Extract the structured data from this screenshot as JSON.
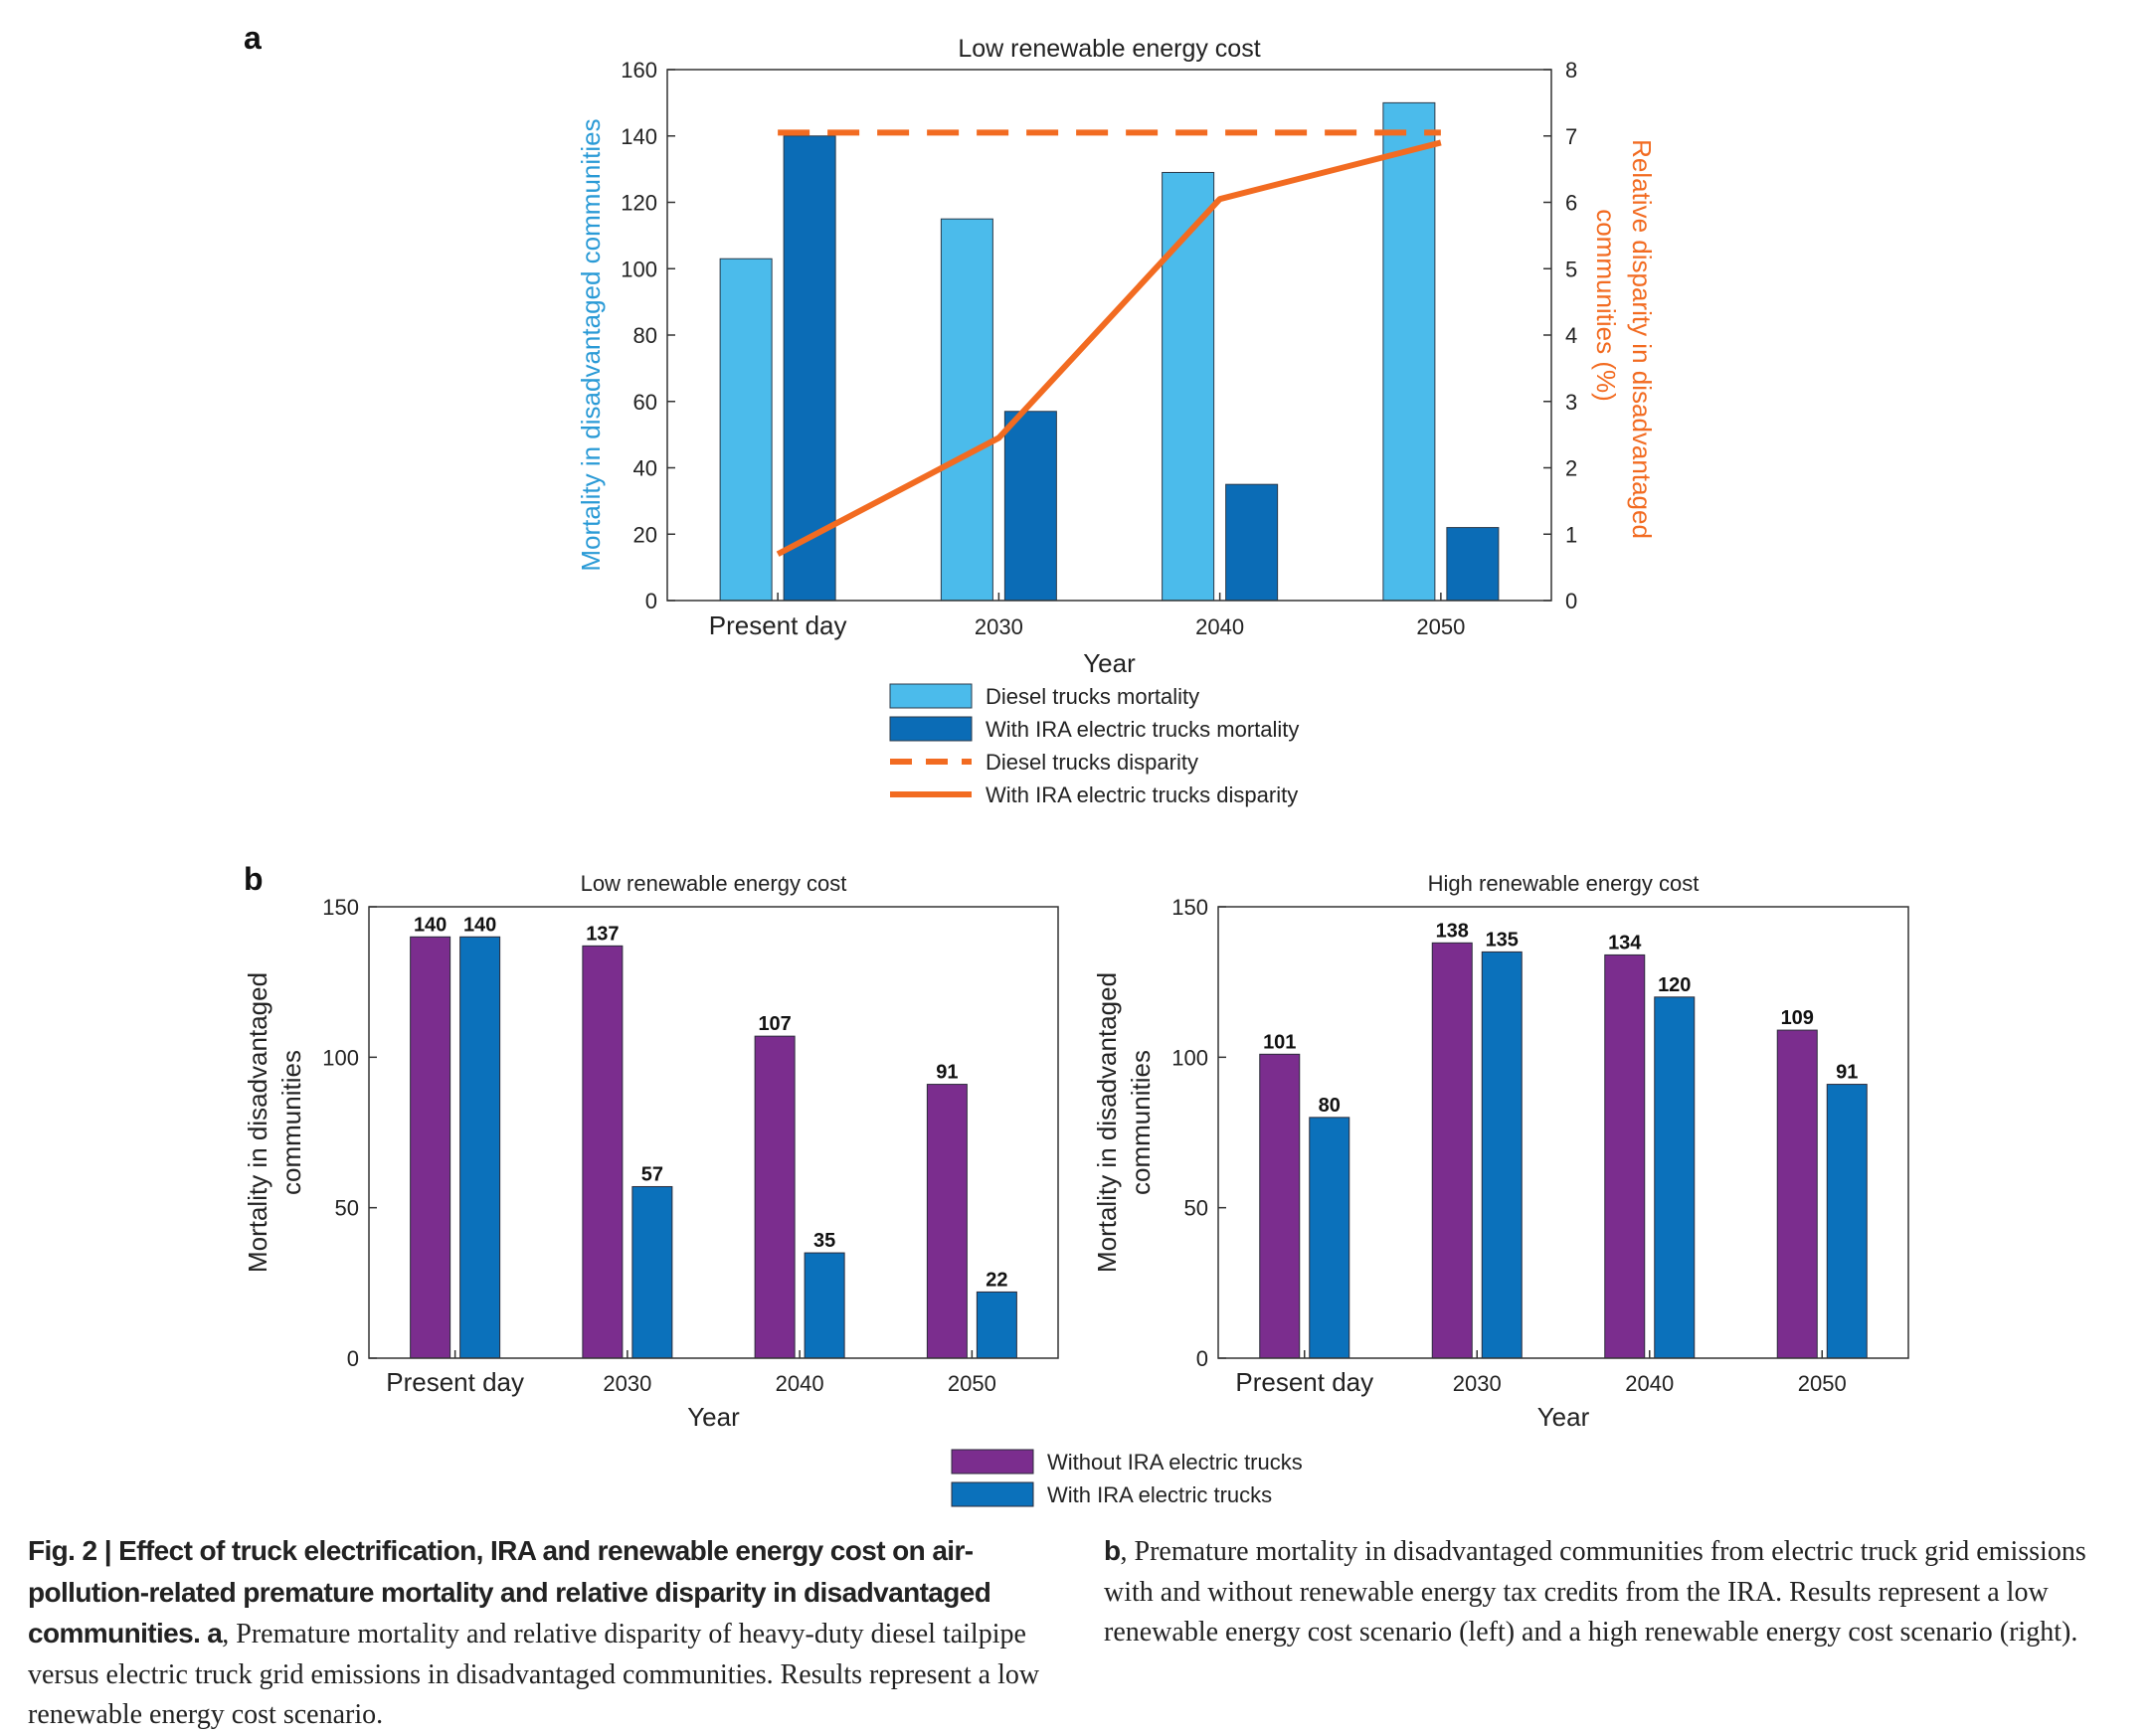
{
  "panel_labels": {
    "a": "a",
    "b": "b"
  },
  "colors": {
    "diesel_light_blue": "#4bbbeb",
    "ira_dark_blue": "#0b6cb6",
    "disparity_orange": "#f26b21",
    "without_ira_purple": "#7b2d8e",
    "with_ira_blue": "#0b71bb",
    "left_axis_blue": "#2a9ad6"
  },
  "chart_data": [
    {
      "id": "a",
      "type": "bar",
      "title": "Low renewable energy cost",
      "xlabel": "Year",
      "ylabel": "Mortality in disadvantaged communities",
      "y2label_line1": "Relative disparity in disadvantaged",
      "y2label_line2": "communities (%)",
      "categories": [
        "Present day",
        "2030",
        "2040",
        "2050"
      ],
      "ylim": [
        0,
        160
      ],
      "yticks": [
        0,
        20,
        40,
        60,
        80,
        100,
        120,
        140,
        160
      ],
      "y2lim": [
        0,
        8
      ],
      "y2ticks": [
        0,
        1,
        2,
        3,
        4,
        5,
        6,
        7,
        8
      ],
      "series": [
        {
          "name": "Diesel trucks mortality",
          "kind": "bar",
          "values": [
            103,
            115,
            129,
            150
          ]
        },
        {
          "name": "With IRA electric trucks mortality",
          "kind": "bar",
          "values": [
            140,
            57,
            35,
            22
          ]
        },
        {
          "name": "Diesel trucks disparity",
          "kind": "line-dashed",
          "axis": "right",
          "values": [
            7.05,
            7.05,
            7.05,
            7.05
          ]
        },
        {
          "name": "With IRA electric trucks disparity",
          "kind": "line",
          "axis": "right",
          "values": [
            0.7,
            2.45,
            6.05,
            6.9
          ]
        }
      ],
      "grid": false,
      "legend_position": "bottom"
    },
    {
      "id": "b-left",
      "type": "bar",
      "title": "Low renewable energy cost",
      "xlabel": "Year",
      "ylabel_line1": "Mortality in disadvantaged",
      "ylabel_line2": "communities",
      "categories": [
        "Present day",
        "2030",
        "2040",
        "2050"
      ],
      "ylim": [
        0,
        150
      ],
      "yticks": [
        0,
        50,
        100,
        150
      ],
      "series": [
        {
          "name": "Without IRA electric trucks",
          "values": [
            140,
            137,
            107,
            91
          ]
        },
        {
          "name": "With IRA electric trucks",
          "values": [
            140,
            57,
            35,
            22
          ]
        }
      ],
      "data_labels": true,
      "grid": false
    },
    {
      "id": "b-right",
      "type": "bar",
      "title": "High renewable energy cost",
      "xlabel": "Year",
      "ylabel_line1": "Mortality in disadvantaged",
      "ylabel_line2": "communities",
      "categories": [
        "Present day",
        "2030",
        "2040",
        "2050"
      ],
      "ylim": [
        0,
        150
      ],
      "yticks": [
        0,
        50,
        100,
        150
      ],
      "series": [
        {
          "name": "Without IRA electric trucks",
          "values": [
            101,
            138,
            134,
            109
          ]
        },
        {
          "name": "With IRA electric trucks",
          "values": [
            80,
            135,
            120,
            91
          ]
        }
      ],
      "data_labels": true,
      "grid": false
    }
  ],
  "legend_b": [
    "Without IRA electric trucks",
    "With IRA electric trucks"
  ],
  "caption": {
    "left_bold": "Fig. 2 | Effect of truck electrification, IRA and renewable energy cost on air-pollution-related premature mortality and relative disparity in disadvantaged communities.",
    "left_a": "a",
    "left_text": ", Premature mortality and relative disparity of heavy-duty diesel tailpipe versus electric truck grid emissions in disadvantaged communities. Results represent a low renewable energy cost scenario.",
    "right_b": "b",
    "right_text": ", Premature mortality in disadvantaged communities from electric truck grid emissions with and without renewable energy tax credits from the IRA. Results represent a low renewable energy cost scenario (left) and a high renewable energy cost scenario (right)."
  }
}
